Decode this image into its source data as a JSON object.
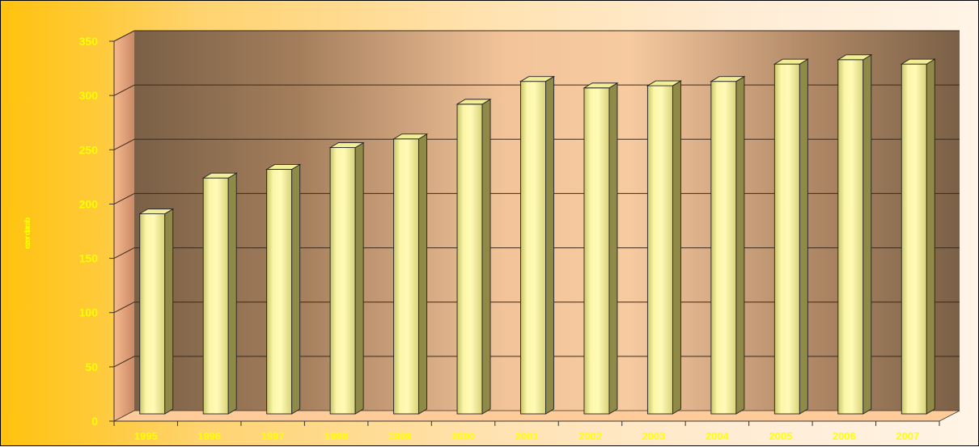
{
  "chart_data": {
    "type": "bar",
    "title": "",
    "xlabel": "",
    "ylabel": "ezer darab",
    "categories": [
      "1995",
      "1996",
      "1997",
      "1998",
      "1999",
      "2000",
      "2001",
      "2002",
      "2003",
      "2004",
      "2005",
      "2006",
      "2007"
    ],
    "values": [
      191,
      224,
      232,
      252,
      260,
      292,
      313,
      307,
      309,
      313,
      329,
      333,
      329
    ],
    "ylim": [
      0,
      350
    ],
    "yticks": [
      "0",
      "50",
      "100",
      "150",
      "200",
      "250",
      "300",
      "350"
    ],
    "grid": true,
    "legend": "none",
    "style": "3d-cylinder-columns"
  },
  "colors": {
    "background_left": "#ffc20e",
    "background_right": "#fff4e6",
    "plot_dark": "#7a6046",
    "plot_light": "#f7caa0",
    "floor": "#ffcc99",
    "bar_front": "#f7f39a",
    "bar_side": "#8f8a48",
    "text": "#ffff00"
  }
}
